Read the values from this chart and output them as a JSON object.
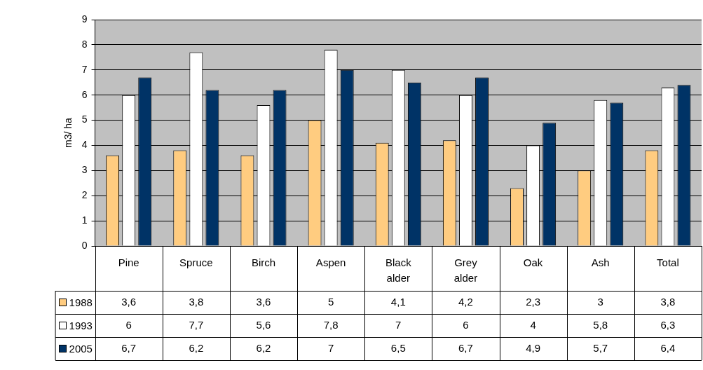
{
  "chart_data": {
    "type": "bar",
    "ylabel": "m3/ ha",
    "categories": [
      "Pine",
      "Spruce",
      "Birch",
      "Aspen",
      "Black alder",
      "Grey alder",
      "Oak",
      "Ash",
      "Total"
    ],
    "series": [
      {
        "name": "1988",
        "color": "#ffcc80",
        "values": [
          3.6,
          3.8,
          3.6,
          5,
          4.1,
          4.2,
          2.3,
          3,
          3.8
        ],
        "value_labels": [
          "3,6",
          "3,8",
          "3,6",
          "5",
          "4,1",
          "4,2",
          "2,3",
          "3",
          "3,8"
        ]
      },
      {
        "name": "1993",
        "color": "#ffffff",
        "values": [
          6,
          7.7,
          5.6,
          7.8,
          7,
          6,
          4,
          5.8,
          6.3
        ],
        "value_labels": [
          "6",
          "7,7",
          "5,6",
          "7,8",
          "7",
          "6",
          "4",
          "5,8",
          "6,3"
        ]
      },
      {
        "name": "2005",
        "color": "#003366",
        "values": [
          6.7,
          6.2,
          6.2,
          7,
          6.5,
          6.7,
          4.9,
          5.7,
          6.4
        ],
        "value_labels": [
          "6,7",
          "6,2",
          "6,2",
          "7",
          "6,5",
          "6,7",
          "4,9",
          "5,7",
          "6,4"
        ]
      }
    ],
    "ylim": [
      0,
      9
    ],
    "yticks": [
      0,
      1,
      2,
      3,
      4,
      5,
      6,
      7,
      8,
      9
    ],
    "grid": "y",
    "legend": "bottom"
  }
}
